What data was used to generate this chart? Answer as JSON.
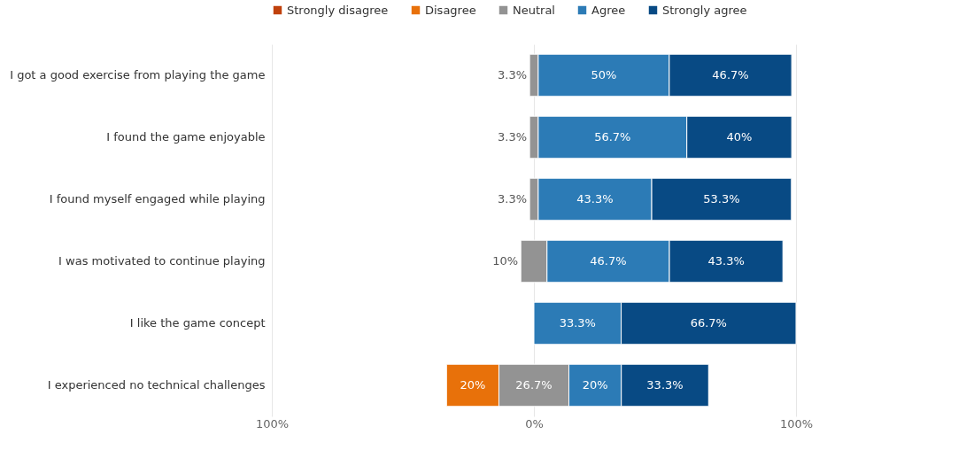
{
  "chart_data": {
    "type": "bar",
    "orientation": "horizontal",
    "stacked": true,
    "categories": [
      "I got a good exercise from playing the game",
      "I found the game enjoyable",
      "I found myself engaged while playing",
      "I was motivated to continue playing",
      "I like the game concept",
      "I experienced no technical challenges"
    ],
    "series": [
      {
        "name": "Strongly disagree",
        "color": "#c0410c",
        "values": [
          null,
          null,
          null,
          null,
          null,
          null
        ],
        "base": [
          null,
          null,
          null,
          null,
          null,
          null
        ],
        "value_labels": [
          null,
          null,
          null,
          null,
          null,
          null
        ]
      },
      {
        "name": "Disagree",
        "color": "#e8710a",
        "values": [
          null,
          null,
          null,
          null,
          null,
          20
        ],
        "base": [
          null,
          null,
          null,
          null,
          null,
          -33.35
        ],
        "value_labels": [
          null,
          null,
          null,
          null,
          null,
          "20%"
        ]
      },
      {
        "name": "Neutral",
        "color": "#939393",
        "values": [
          3.3,
          3.3,
          3.3,
          10,
          null,
          26.7
        ],
        "base": [
          -1.65,
          -1.65,
          -1.65,
          -5,
          null,
          -13.35
        ],
        "value_labels": [
          "3.3%",
          "3.3%",
          "3.3%",
          "10%",
          null,
          "26.7%"
        ]
      },
      {
        "name": "Agree",
        "color": "#2c7bb6",
        "values": [
          50,
          56.7,
          43.3,
          46.7,
          33.3,
          20
        ],
        "base": [
          1.65,
          1.65,
          1.65,
          5,
          0,
          13.35
        ],
        "value_labels": [
          "50%",
          "56.7%",
          "43.3%",
          "46.7%",
          "33.3%",
          "20%"
        ]
      },
      {
        "name": "Strongly agree",
        "color": "#084a84",
        "values": [
          46.7,
          40,
          53.3,
          43.3,
          66.7,
          33.3
        ],
        "base": [
          51.65,
          58.35,
          44.95,
          51.7,
          33.3,
          33.35
        ],
        "value_labels": [
          "46.7%",
          "40%",
          "53.3%",
          "43.3%",
          "66.7%",
          "33.3%"
        ]
      }
    ],
    "xlim": [
      -100,
      100
    ],
    "xticks": [
      {
        "value": -100,
        "label": "100%"
      },
      {
        "value": 0,
        "label": "0%"
      },
      {
        "value": 100,
        "label": "100%"
      }
    ],
    "grid": "x",
    "legend": "top left"
  }
}
